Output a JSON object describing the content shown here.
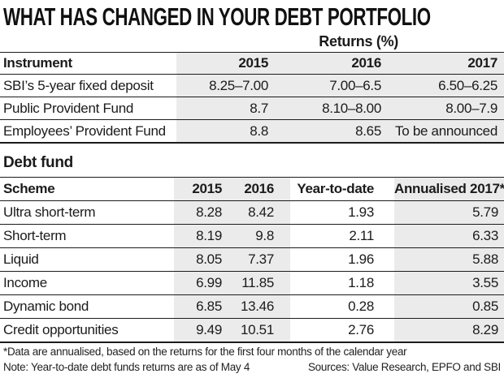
{
  "title": "WHAT HAS CHANGED IN YOUR DEBT PORTFOLIO",
  "returns_group_label": "Returns (%)",
  "debt_fund_heading": "Debt fund",
  "footnotes": {
    "annualised_note": "*Data are annualised, based on the returns for the first four months of the calendar year",
    "ytd_note": "Note: Year-to-date debt funds returns are as of May 4",
    "sources": "Sources: Value Research, EPFO and SBI"
  },
  "colors": {
    "shade": "#ebebeb",
    "rule": "#1c1c1c",
    "text": "#1b1b1b"
  },
  "chart_data": [
    {
      "type": "table",
      "title": "Returns (%)",
      "columns": [
        "Instrument",
        "2015",
        "2016",
        "2017"
      ],
      "rows": [
        [
          "SBI’s 5-year fixed deposit",
          "8.25–7.00",
          "7.00–6.5",
          "6.50–6.25"
        ],
        [
          "Public Provident Fund",
          "8.7",
          "8.10–8.00",
          "8.00–7.9"
        ],
        [
          "Employees’ Provident Fund",
          "8.8",
          "8.65",
          "To be announced"
        ]
      ]
    },
    {
      "type": "table",
      "title": "Debt fund",
      "columns": [
        "Scheme",
        "2015",
        "2016",
        "Year-to-date",
        "Annualised 2017*"
      ],
      "rows": [
        [
          "Ultra short-term",
          "8.28",
          "8.42",
          "1.93",
          "5.79"
        ],
        [
          "Short-term",
          "8.19",
          "9.8",
          "2.11",
          "6.33"
        ],
        [
          "Liquid",
          "8.05",
          "7.37",
          "1.96",
          "5.88"
        ],
        [
          "Income",
          "6.99",
          "11.85",
          "1.18",
          "3.55"
        ],
        [
          "Dynamic bond",
          "6.85",
          "13.46",
          "0.28",
          "0.85"
        ],
        [
          "Credit opportunities",
          "9.49",
          "10.51",
          "2.76",
          "8.29"
        ]
      ]
    }
  ]
}
